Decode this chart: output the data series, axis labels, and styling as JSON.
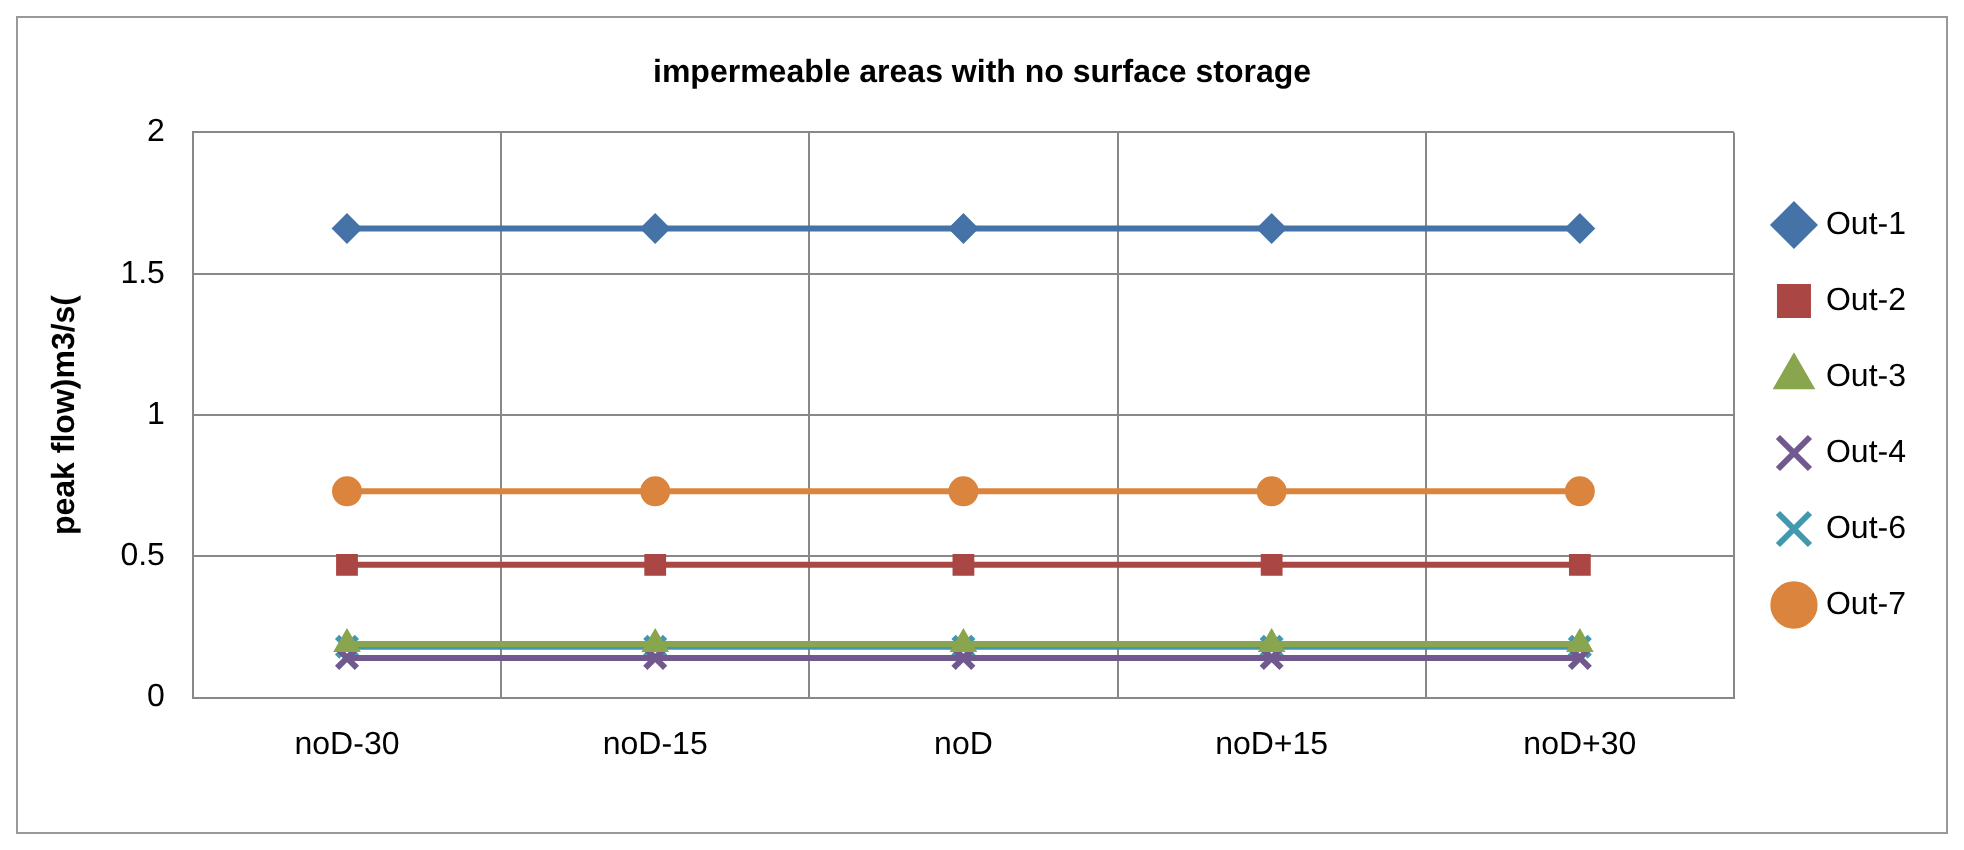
{
  "chart_data": {
    "type": "line",
    "title": "impermeable areas with no surface storage",
    "ylabel": "peak flow)m3/s(",
    "categories": [
      "noD-30",
      "noD-15",
      "noD",
      "noD+15",
      "noD+30"
    ],
    "series": [
      {
        "name": "Out-1",
        "color": "#4572a7",
        "marker": "diamond",
        "values": [
          1.66,
          1.66,
          1.66,
          1.66,
          1.66
        ]
      },
      {
        "name": "Out-2",
        "color": "#aa4643",
        "marker": "square",
        "values": [
          0.47,
          0.47,
          0.47,
          0.47,
          0.47
        ]
      },
      {
        "name": "Out-3",
        "color": "#89a54e",
        "marker": "triangle",
        "values": [
          0.19,
          0.19,
          0.19,
          0.19,
          0.19
        ]
      },
      {
        "name": "Out-4",
        "color": "#71588f",
        "marker": "cross",
        "values": [
          0.14,
          0.14,
          0.14,
          0.14,
          0.14
        ]
      },
      {
        "name": "Out-6",
        "color": "#4198af",
        "marker": "cross",
        "values": [
          0.18,
          0.18,
          0.18,
          0.18,
          0.18
        ]
      },
      {
        "name": "Out-7",
        "color": "#db843d",
        "marker": "circle",
        "values": [
          0.73,
          0.73,
          0.73,
          0.73,
          0.73
        ]
      }
    ],
    "ylim": [
      0,
      2
    ],
    "yticks": [
      0,
      0.5,
      1,
      1.5,
      2
    ],
    "grid": true,
    "legend": "right"
  }
}
